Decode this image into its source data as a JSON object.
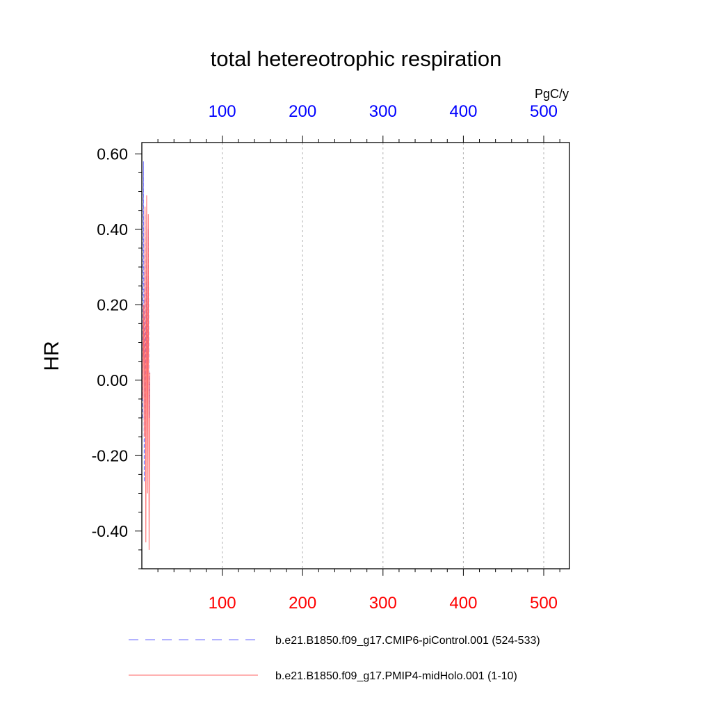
{
  "chart_data": {
    "type": "line",
    "title": "total hetereotrophic respiration",
    "ylabel": "HR",
    "units": "PgC/y",
    "ylim": [
      -0.5,
      0.63
    ],
    "xlim": [
      0,
      532
    ],
    "grid_x": true,
    "y_ticks": [
      0.6,
      0.4,
      0.2,
      0.0,
      -0.2,
      -0.4
    ],
    "y_tick_labels": [
      "0.60",
      "0.40",
      "0.20",
      "0.00",
      "-0.20",
      "-0.40"
    ],
    "x_ticks": [
      100,
      200,
      300,
      400,
      500
    ],
    "x_tick_labels_top": [
      "100",
      "200",
      "300",
      "400",
      "500"
    ],
    "x_tick_labels_bottom": [
      "100",
      "200",
      "300",
      "400",
      "500"
    ],
    "top_axis_color": "#0000ff",
    "bottom_axis_color": "#ff0000",
    "series": [
      {
        "name": "b.e21.B1850.f09_g17.CMIP6-piControl.001 (524-533)",
        "color": "#6666ff",
        "dash": "dashed",
        "x": [
          1,
          2,
          3,
          4,
          5,
          6,
          7,
          8,
          9,
          10
        ],
        "values": [
          -0.1,
          0.58,
          -0.27,
          0.44,
          -0.09,
          0.33,
          -0.05,
          0.4,
          -0.1,
          0.02
        ]
      },
      {
        "name": "b.e21.B1850.f09_g17.PMIP4-midHolo.001 (1-10)",
        "color": "#ff6666",
        "dash": "solid",
        "x": [
          1,
          2,
          3,
          4,
          5,
          6,
          7,
          8,
          9,
          10
        ],
        "values": [
          -0.05,
          0.2,
          -0.15,
          0.46,
          -0.43,
          0.49,
          -0.3,
          0.44,
          -0.45,
          0.02
        ]
      }
    ]
  }
}
